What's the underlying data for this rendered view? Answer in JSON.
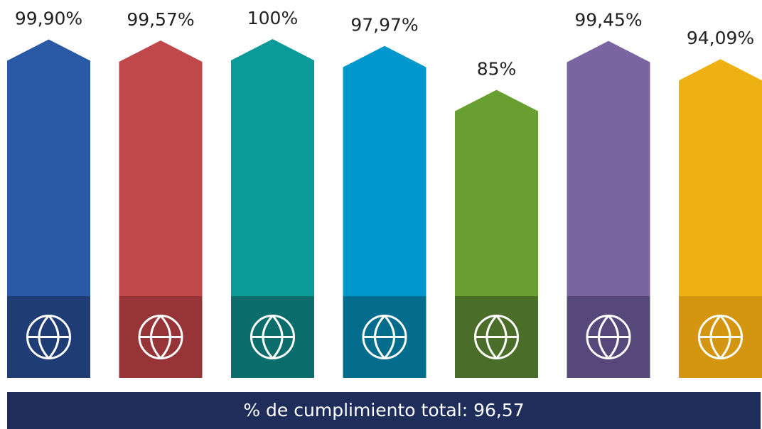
{
  "chart_data": {
    "type": "arrowbar",
    "values": [
      99.9,
      99.57,
      100,
      97.97,
      85,
      99.45,
      94.09
    ],
    "value_labels": [
      "99,90%",
      "99,57%",
      "100%",
      "97,97%",
      "85%",
      "99,45%",
      "94,09%"
    ],
    "colors": [
      "#2a5aa6",
      "#c0474a",
      "#0a9a98",
      "#0098cc",
      "#699e30",
      "#7b64a2",
      "#edb113"
    ],
    "icon_colors": [
      "#1f3c74",
      "#963438",
      "#0c6e6c",
      "#046c8c",
      "#4a6e2a",
      "#56487a",
      "#d49510"
    ],
    "ylim": [
      0,
      100
    ],
    "summary": "% de cumplimiento total: 96,57"
  }
}
